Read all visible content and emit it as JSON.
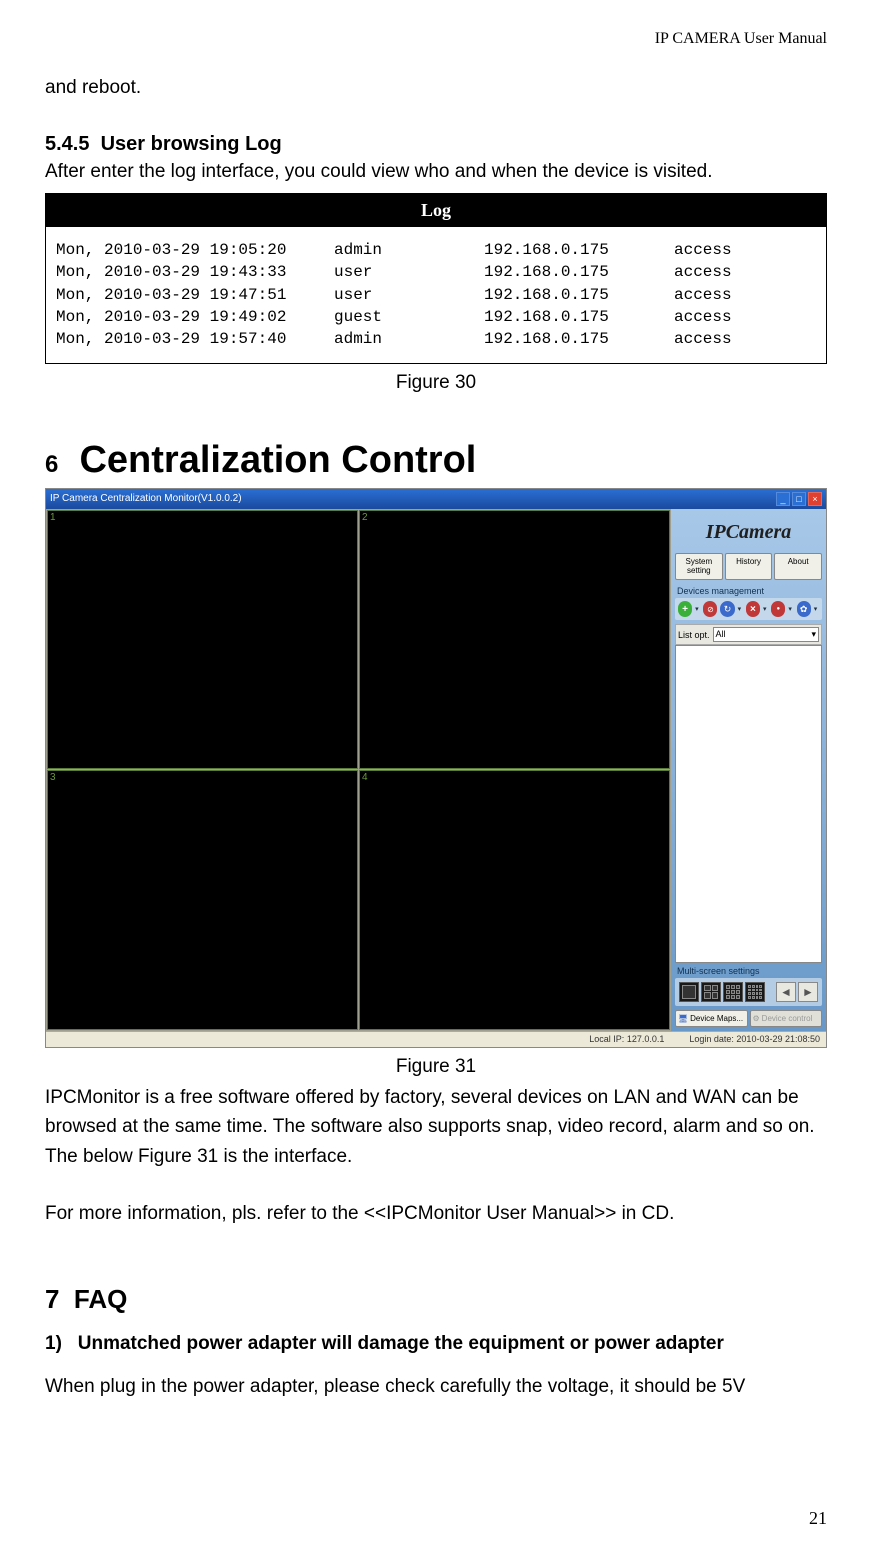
{
  "header": "IP  CAMERA  User  Manual",
  "intro_fragment": "and reboot.",
  "section_545": {
    "number": "5.4.5",
    "title": "User browsing Log",
    "text": "After enter the log interface, you could view who and when the device is visited."
  },
  "log": {
    "title": "Log",
    "rows": [
      {
        "date": "Mon, 2010-03-29 19:05:20",
        "user": "admin",
        "ip": "192.168.0.175",
        "action": "access"
      },
      {
        "date": "Mon, 2010-03-29 19:43:33",
        "user": "user",
        "ip": "192.168.0.175",
        "action": "access"
      },
      {
        "date": "Mon, 2010-03-29 19:47:51",
        "user": "user",
        "ip": "192.168.0.175",
        "action": "access"
      },
      {
        "date": "Mon, 2010-03-29 19:49:02",
        "user": "guest",
        "ip": "192.168.0.175",
        "action": "access"
      },
      {
        "date": "Mon, 2010-03-29 19:57:40",
        "user": "admin",
        "ip": "192.168.0.175",
        "action": "access"
      }
    ],
    "caption": "Figure 30"
  },
  "chapter6": {
    "number": "6",
    "title": "Centralization Control"
  },
  "central": {
    "titlebar": "IP Camera Centralization Monitor(V1.0.0.2)",
    "cells": [
      "1",
      "2",
      "3",
      "4"
    ],
    "logo": "IPCamera",
    "tabs": {
      "system": "System setting",
      "history": "History",
      "about": "About"
    },
    "devices_label": "Devices management",
    "icons": {
      "add_color": "#3ab03a",
      "globe_color": "#c03838",
      "refresh_color": "#3a6acb",
      "delete_color": "#c03838",
      "record_color": "#c03838",
      "gear_color": "#3a6acb"
    },
    "listopt_label": "List opt.",
    "listopt_value": "All",
    "multiscreen_label": "Multi-screen settings",
    "bottom_tabs": {
      "maps": "Device Maps...",
      "control": "Device control"
    },
    "status": {
      "ip_label": "Local IP:",
      "ip": "127.0.0.1",
      "login_label": "Login date:",
      "login": "2010-03-29 21:08:50"
    },
    "caption": "Figure 31"
  },
  "para1": "IPCMonitor is a free software offered by factory, several devices on LAN and WAN can be browsed at the same time. The software also supports snap, video record, alarm and so on. The below Figure 31 is the interface.",
  "para2": "For more information, pls. refer to the <<IPCMonitor User Manual>> in CD.",
  "chapter7": {
    "number": "7",
    "title": "FAQ"
  },
  "faq1": {
    "number": "1)",
    "title": "Unmatched power adapter will damage the equipment or power adapter",
    "text": "When plug in the power adapter, please check carefully the voltage, it should be 5V"
  },
  "page_number": "21"
}
